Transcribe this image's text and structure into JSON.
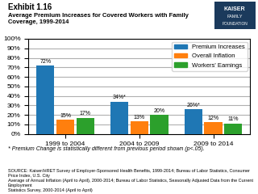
{
  "chart_data": {
    "type": "bar",
    "title": "Exhibit 1.16",
    "subtitle": "Average Premium Increases for Covered Workers with Family\nCoverage, 1999-2014",
    "categories": [
      "1999 to 2004",
      "2004 to 2009",
      "2009 to 2014"
    ],
    "series": [
      {
        "name": "Premium Increases",
        "values": [
          72,
          34,
          26
        ],
        "value_labels": [
          "72%",
          "34%*",
          "26%*"
        ]
      },
      {
        "name": "Overall Inflation",
        "values": [
          15,
          13,
          12
        ],
        "value_labels": [
          "15%",
          "13%",
          "12%"
        ]
      },
      {
        "name": "Workers' Earnings",
        "values": [
          17,
          20,
          11
        ],
        "value_labels": [
          "17%",
          "20%",
          "11%"
        ]
      }
    ],
    "ylim": [
      0,
      100
    ],
    "yticks": [
      {
        "value": 0,
        "label": "0%"
      },
      {
        "value": 10,
        "label": "10%"
      },
      {
        "value": 20,
        "label": "20%"
      },
      {
        "value": 30,
        "label": "30%"
      },
      {
        "value": 40,
        "label": "40%"
      },
      {
        "value": 50,
        "label": "50%"
      },
      {
        "value": 60,
        "label": "60%"
      },
      {
        "value": 70,
        "label": "70%"
      },
      {
        "value": 80,
        "label": "80%"
      },
      {
        "value": 90,
        "label": "90%"
      },
      {
        "value": 100,
        "label": "100%"
      }
    ],
    "grid": true,
    "legend": "upper right",
    "data_labels": true,
    "annotations": [
      "* Premium Change is statistically different from previous period shown (p<.05).",
      "SOURCE: Kaiser/HRET Survey of Employer-Sponsored Health Benefits, 1999-2014; Bureau of Labor Statistics, Consumer Price Index, U.S. City\nAverage of Annual Inflation (April to April), 2000-2014; Bureau of Labor Statistics, Seasonally Adjusted Data from the Current Employment\nStatistics Survey, 2000-2014 (April to April)",
      "KAISER",
      "FAMILY",
      "FOUNDATION"
    ]
  }
}
